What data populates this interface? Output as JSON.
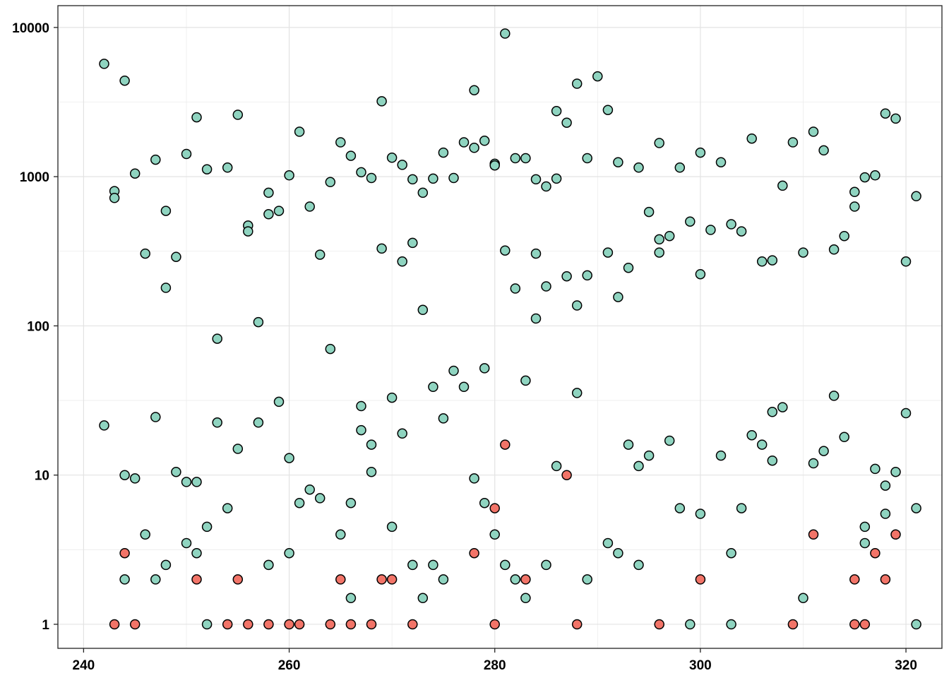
{
  "colors": {
    "teal": "#8fd4c0",
    "red": "#f27468",
    "grid": "#e3e3e3",
    "border": "#222222"
  },
  "chart_data": {
    "type": "scatter",
    "title": "",
    "xlabel": "",
    "ylabel": "",
    "x_scale": "linear",
    "y_scale": "log10",
    "xlim": [
      237.5,
      323.5
    ],
    "ylim": [
      0.69,
      14000
    ],
    "x_ticks": [
      240,
      260,
      280,
      300,
      320
    ],
    "x_tick_labels": [
      "240",
      "260",
      "280",
      "300",
      "320"
    ],
    "y_ticks": [
      1,
      10,
      100,
      1000,
      10000
    ],
    "y_tick_labels": [
      "1",
      "10",
      "100",
      "1000",
      "10000"
    ],
    "grid": true,
    "legend": "none",
    "series": [
      {
        "color": "#8fd4c0",
        "points": [
          [
            242,
            5700
          ],
          [
            242,
            21.5
          ],
          [
            243,
            800
          ],
          [
            243,
            720
          ],
          [
            244,
            4400
          ],
          [
            244,
            10
          ],
          [
            244,
            2
          ],
          [
            245,
            1050
          ],
          [
            245,
            9.5
          ],
          [
            246,
            305
          ],
          [
            246,
            4
          ],
          [
            247,
            1300
          ],
          [
            247,
            24.5
          ],
          [
            247,
            2
          ],
          [
            248,
            590
          ],
          [
            248,
            180
          ],
          [
            248,
            2.5
          ],
          [
            249,
            290
          ],
          [
            249,
            10.5
          ],
          [
            250,
            1420
          ],
          [
            250,
            9
          ],
          [
            250,
            3.5
          ],
          [
            251,
            2500
          ],
          [
            251,
            9
          ],
          [
            251,
            3
          ],
          [
            252,
            1120
          ],
          [
            252,
            4.5
          ],
          [
            252,
            1
          ],
          [
            253,
            82
          ],
          [
            253,
            22.5
          ],
          [
            254,
            1150
          ],
          [
            254,
            6
          ],
          [
            255,
            2600
          ],
          [
            255,
            15
          ],
          [
            256,
            470
          ],
          [
            256,
            430
          ],
          [
            257,
            106
          ],
          [
            257,
            22.5
          ],
          [
            258,
            780
          ],
          [
            258,
            560
          ],
          [
            258,
            2.5
          ],
          [
            259,
            590
          ],
          [
            259,
            31
          ],
          [
            260,
            1020
          ],
          [
            260,
            13
          ],
          [
            260,
            3
          ],
          [
            261,
            2000
          ],
          [
            261,
            6.5
          ],
          [
            262,
            630
          ],
          [
            262,
            8
          ],
          [
            263,
            300
          ],
          [
            263,
            7
          ],
          [
            264,
            920
          ],
          [
            264,
            70
          ],
          [
            265,
            1700
          ],
          [
            265,
            4
          ],
          [
            266,
            1380
          ],
          [
            266,
            6.5
          ],
          [
            266,
            1.5
          ],
          [
            267,
            1070
          ],
          [
            267,
            29
          ],
          [
            267,
            20
          ],
          [
            268,
            980
          ],
          [
            268,
            16
          ],
          [
            268,
            10.5
          ],
          [
            269,
            3200
          ],
          [
            269,
            330
          ],
          [
            270,
            1340
          ],
          [
            270,
            33
          ],
          [
            270,
            4.5
          ],
          [
            271,
            1200
          ],
          [
            271,
            270
          ],
          [
            271,
            19
          ],
          [
            272,
            960
          ],
          [
            272,
            360
          ],
          [
            272,
            2.5
          ],
          [
            273,
            780
          ],
          [
            273,
            128
          ],
          [
            273,
            1.5
          ],
          [
            274,
            970
          ],
          [
            274,
            39
          ],
          [
            274,
            2.5
          ],
          [
            275,
            1450
          ],
          [
            275,
            24
          ],
          [
            275,
            2
          ],
          [
            276,
            980
          ],
          [
            276,
            50
          ],
          [
            277,
            1700
          ],
          [
            277,
            39
          ],
          [
            278,
            3800
          ],
          [
            278,
            1560
          ],
          [
            278,
            9.5
          ],
          [
            279,
            1740
          ],
          [
            279,
            52
          ],
          [
            279,
            6.5
          ],
          [
            280,
            1220
          ],
          [
            280,
            1190
          ],
          [
            280,
            4
          ],
          [
            281,
            9100
          ],
          [
            281,
            320
          ],
          [
            281,
            2.5
          ],
          [
            282,
            1330
          ],
          [
            282,
            178
          ],
          [
            282,
            2
          ],
          [
            283,
            1330
          ],
          [
            283,
            43
          ],
          [
            283,
            1.5
          ],
          [
            284,
            960
          ],
          [
            284,
            305
          ],
          [
            284,
            112
          ],
          [
            285,
            860
          ],
          [
            285,
            184
          ],
          [
            285,
            2.5
          ],
          [
            286,
            2750
          ],
          [
            286,
            970
          ],
          [
            286,
            11.5
          ],
          [
            287,
            2300
          ],
          [
            287,
            215
          ],
          [
            288,
            4200
          ],
          [
            288,
            137
          ],
          [
            288,
            35.5
          ],
          [
            289,
            1330
          ],
          [
            289,
            218
          ],
          [
            289,
            2
          ],
          [
            290,
            4700
          ],
          [
            291,
            2800
          ],
          [
            291,
            310
          ],
          [
            291,
            3.5
          ],
          [
            292,
            1250
          ],
          [
            292,
            156
          ],
          [
            292,
            3
          ],
          [
            293,
            245
          ],
          [
            293,
            16
          ],
          [
            294,
            1150
          ],
          [
            294,
            11.5
          ],
          [
            294,
            2.5
          ],
          [
            295,
            580
          ],
          [
            295,
            13.5
          ],
          [
            296,
            1680
          ],
          [
            296,
            380
          ],
          [
            296,
            310
          ],
          [
            297,
            400
          ],
          [
            297,
            17
          ],
          [
            298,
            1150
          ],
          [
            298,
            6
          ],
          [
            299,
            500
          ],
          [
            299,
            1
          ],
          [
            300,
            1450
          ],
          [
            300,
            222
          ],
          [
            300,
            5.5
          ],
          [
            301,
            440
          ],
          [
            302,
            1250
          ],
          [
            302,
            13.5
          ],
          [
            303,
            480
          ],
          [
            303,
            3
          ],
          [
            303,
            1
          ],
          [
            304,
            430
          ],
          [
            304,
            6
          ],
          [
            305,
            1800
          ],
          [
            305,
            18.5
          ],
          [
            306,
            270
          ],
          [
            306,
            16
          ],
          [
            307,
            275
          ],
          [
            307,
            26.5
          ],
          [
            307,
            12.5
          ],
          [
            308,
            870
          ],
          [
            308,
            28.5
          ],
          [
            309,
            1700
          ],
          [
            310,
            310
          ],
          [
            310,
            1.5
          ],
          [
            311,
            2000
          ],
          [
            311,
            12
          ],
          [
            312,
            1500
          ],
          [
            312,
            14.5
          ],
          [
            313,
            325
          ],
          [
            313,
            34
          ],
          [
            314,
            400
          ],
          [
            314,
            18
          ],
          [
            315,
            790
          ],
          [
            315,
            630
          ],
          [
            316,
            990
          ],
          [
            316,
            4.5
          ],
          [
            316,
            3.5
          ],
          [
            317,
            1020
          ],
          [
            317,
            11
          ],
          [
            318,
            2650
          ],
          [
            318,
            8.5
          ],
          [
            318,
            5.5
          ],
          [
            319,
            2450
          ],
          [
            319,
            10.5
          ],
          [
            320,
            270
          ],
          [
            320,
            26
          ],
          [
            321,
            740
          ],
          [
            321,
            6
          ],
          [
            321,
            1
          ]
        ]
      },
      {
        "color": "#f27468",
        "points": [
          [
            243,
            1
          ],
          [
            244,
            3
          ],
          [
            245,
            1
          ],
          [
            251,
            2
          ],
          [
            254,
            1
          ],
          [
            255,
            2
          ],
          [
            256,
            1
          ],
          [
            258,
            1
          ],
          [
            260,
            1
          ],
          [
            261,
            1
          ],
          [
            264,
            1
          ],
          [
            265,
            2
          ],
          [
            266,
            1
          ],
          [
            268,
            1
          ],
          [
            269,
            2
          ],
          [
            270,
            2
          ],
          [
            272,
            1
          ],
          [
            278,
            3
          ],
          [
            280,
            6
          ],
          [
            280,
            1
          ],
          [
            281,
            16
          ],
          [
            283,
            2
          ],
          [
            287,
            10
          ],
          [
            288,
            1
          ],
          [
            296,
            1
          ],
          [
            300,
            2
          ],
          [
            309,
            1
          ],
          [
            311,
            4
          ],
          [
            315,
            2
          ],
          [
            315,
            1
          ],
          [
            316,
            1
          ],
          [
            317,
            3
          ],
          [
            318,
            2
          ],
          [
            319,
            4
          ]
        ]
      }
    ]
  }
}
